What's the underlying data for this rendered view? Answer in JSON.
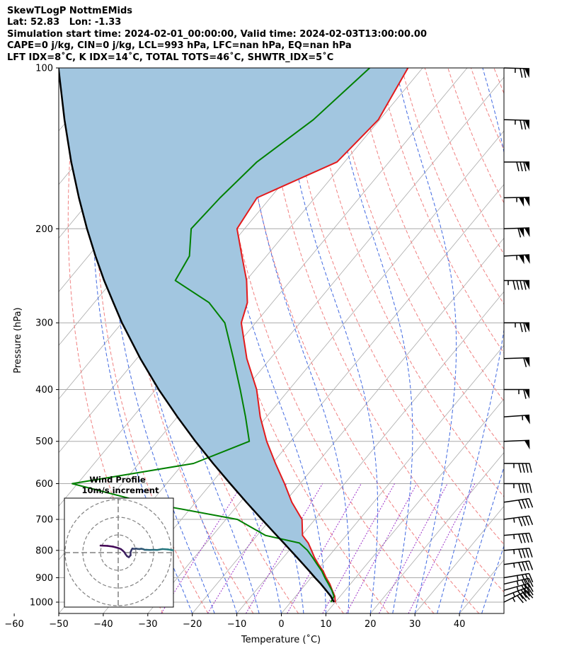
{
  "header": {
    "line1": "SkewTLogP NottmEMids",
    "line2": "Lat: 52.83   Lon: -1.33",
    "line3": "Simulation start time: 2024-02-01_00:00:00, Valid time: 2024-02-03T13:00:00.00",
    "line4": "CAPE=0 j/kg, CIN=0 j/kg, LCL=993 hPa, LFC=nan hPa, EQ=nan hPa",
    "line5": "LFT IDX=8˚C, K IDX=14˚C, TOTAL TOTS=46˚C, SHWTR_IDX=5˚C"
  },
  "colors": {
    "temperature": "#e31a1c",
    "dewpoint": "#008000",
    "parcel": "#000000",
    "cape_fill": "#a2c6e0",
    "dry_adiabat": "#f08080",
    "moist_adiabat": "#4169e1",
    "mixing_ratio": "#9b30c8",
    "isotherm": "#aaaaaa",
    "isobar": "#aaaaaa"
  },
  "chart_data": {
    "type": "skewt",
    "xlabel": "Temperature (˚C)",
    "ylabel": "Pressure (hPa)",
    "xlim": [
      -60,
      40
    ],
    "ylim": [
      1050,
      100
    ],
    "y_scale": "log",
    "xticks": [
      -60,
      -50,
      -40,
      -30,
      -20,
      -10,
      0,
      10,
      20,
      30,
      40
    ],
    "xtick_labels": [
      "−60",
      "−50",
      "−40",
      "−30",
      "−20",
      "−10",
      "0",
      "10",
      "20",
      "30",
      "40"
    ],
    "yticks": [
      1000,
      900,
      800,
      700,
      600,
      500,
      400,
      300,
      200,
      100
    ],
    "ytick_labels": [
      "1000",
      "900",
      "800",
      "700",
      "600",
      "500",
      "400",
      "300",
      "200",
      "100"
    ],
    "grid": true,
    "pressure": [
      1000,
      975,
      950,
      925,
      900,
      875,
      850,
      825,
      800,
      775,
      750,
      700,
      650,
      600,
      550,
      500,
      450,
      400,
      350,
      300,
      275,
      250,
      225,
      200,
      175,
      150,
      125,
      100
    ],
    "temperature": [
      10.0,
      8.8,
      7.1,
      5.4,
      3.4,
      1.5,
      -0.8,
      -3.0,
      -5.0,
      -7.1,
      -9.8,
      -12.9,
      -18.4,
      -23.5,
      -29.3,
      -35.4,
      -41.4,
      -47.3,
      -55.3,
      -63.2,
      -65.6,
      -69.9,
      -75.5,
      -81.7,
      -83.0,
      -71.7,
      -70.3,
      -73.3
    ],
    "dewpoint": [
      9.0,
      8.6,
      7.0,
      5.1,
      3.1,
      1.2,
      -1.1,
      -3.4,
      -5.9,
      -9.1,
      -18.1,
      -27.4,
      -51.5,
      -71.2,
      -47.7,
      -39.3,
      -44.7,
      -51.0,
      -58.3,
      -66.9,
      -74.2,
      -85.9,
      -87.3,
      -92.0,
      -91.3,
      -89.7,
      -84.9,
      -81.9
    ],
    "parcel": [
      9.7,
      7.9,
      5.7,
      3.4,
      0.9,
      -1.6,
      -4.2,
      -6.9,
      -9.7,
      -12.6,
      -15.6,
      -21.9,
      -28.6,
      -35.7,
      -43.3,
      -51.4,
      -60.0,
      -69.3,
      -79.2,
      -90.0,
      -95.7,
      -101.9,
      -108.4,
      -115.4,
      -123.0,
      -131.4,
      -140.8,
      -151.8
    ],
    "wind_barbs": [
      {
        "p": 1000,
        "u": -20,
        "v": 10
      },
      {
        "p": 975,
        "u": -21,
        "v": 8
      },
      {
        "p": 950,
        "u": -18,
        "v": 5
      },
      {
        "p": 925,
        "u": -17,
        "v": 4
      },
      {
        "p": 900,
        "u": -18,
        "v": 3
      },
      {
        "p": 850,
        "u": -22,
        "v": 3
      },
      {
        "p": 800,
        "u": -24,
        "v": 2
      },
      {
        "p": 750,
        "u": -23,
        "v": 2
      },
      {
        "p": 700,
        "u": -22,
        "v": 3
      },
      {
        "p": 650,
        "u": -21,
        "v": 3
      },
      {
        "p": 600,
        "u": -24,
        "v": 0
      },
      {
        "p": 550,
        "u": -22,
        "v": 0
      },
      {
        "p": 500,
        "u": -25,
        "v": 1
      },
      {
        "p": 450,
        "u": -28,
        "v": 2
      },
      {
        "p": 400,
        "u": -33,
        "v": 0
      },
      {
        "p": 350,
        "u": -30,
        "v": 1
      },
      {
        "p": 300,
        "u": -38,
        "v": 0
      },
      {
        "p": 250,
        "u": -50,
        "v": 0
      },
      {
        "p": 225,
        "u": -55,
        "v": 3
      },
      {
        "p": 200,
        "u": -57,
        "v": 2
      },
      {
        "p": 175,
        "u": -53,
        "v": 1
      },
      {
        "p": 150,
        "u": -40,
        "v": 0
      },
      {
        "p": 125,
        "u": -38,
        "v": -1
      },
      {
        "p": 100,
        "u": -38,
        "v": -1
      }
    ],
    "hodograph": {
      "title": "Wind Profile",
      "subtitle": "10m/s increment",
      "ring_increment": 10,
      "rings": 3,
      "u": [
        -10,
        -6,
        -3,
        0,
        1.5,
        2.5,
        3.5,
        4.2,
        5,
        6,
        7,
        7,
        7.5,
        8,
        9,
        10,
        11,
        12,
        13,
        14,
        15,
        16,
        18,
        20,
        22,
        25,
        28,
        33,
        38,
        42,
        45,
        48,
        50
      ],
      "v": [
        4.0,
        3.8,
        3.4,
        2.6,
        2.0,
        1.2,
        0.2,
        -1.0,
        -2.0,
        -2.6,
        -1.5,
        0.3,
        1.5,
        2.3,
        2.1,
        2.3,
        2.1,
        2.0,
        2.2,
        2.0,
        1.6,
        1.6,
        1.5,
        1.6,
        1.5,
        2.0,
        1.8,
        1.0,
        1.0,
        0.7,
        0.3,
        0.0,
        -0.3
      ]
    }
  }
}
